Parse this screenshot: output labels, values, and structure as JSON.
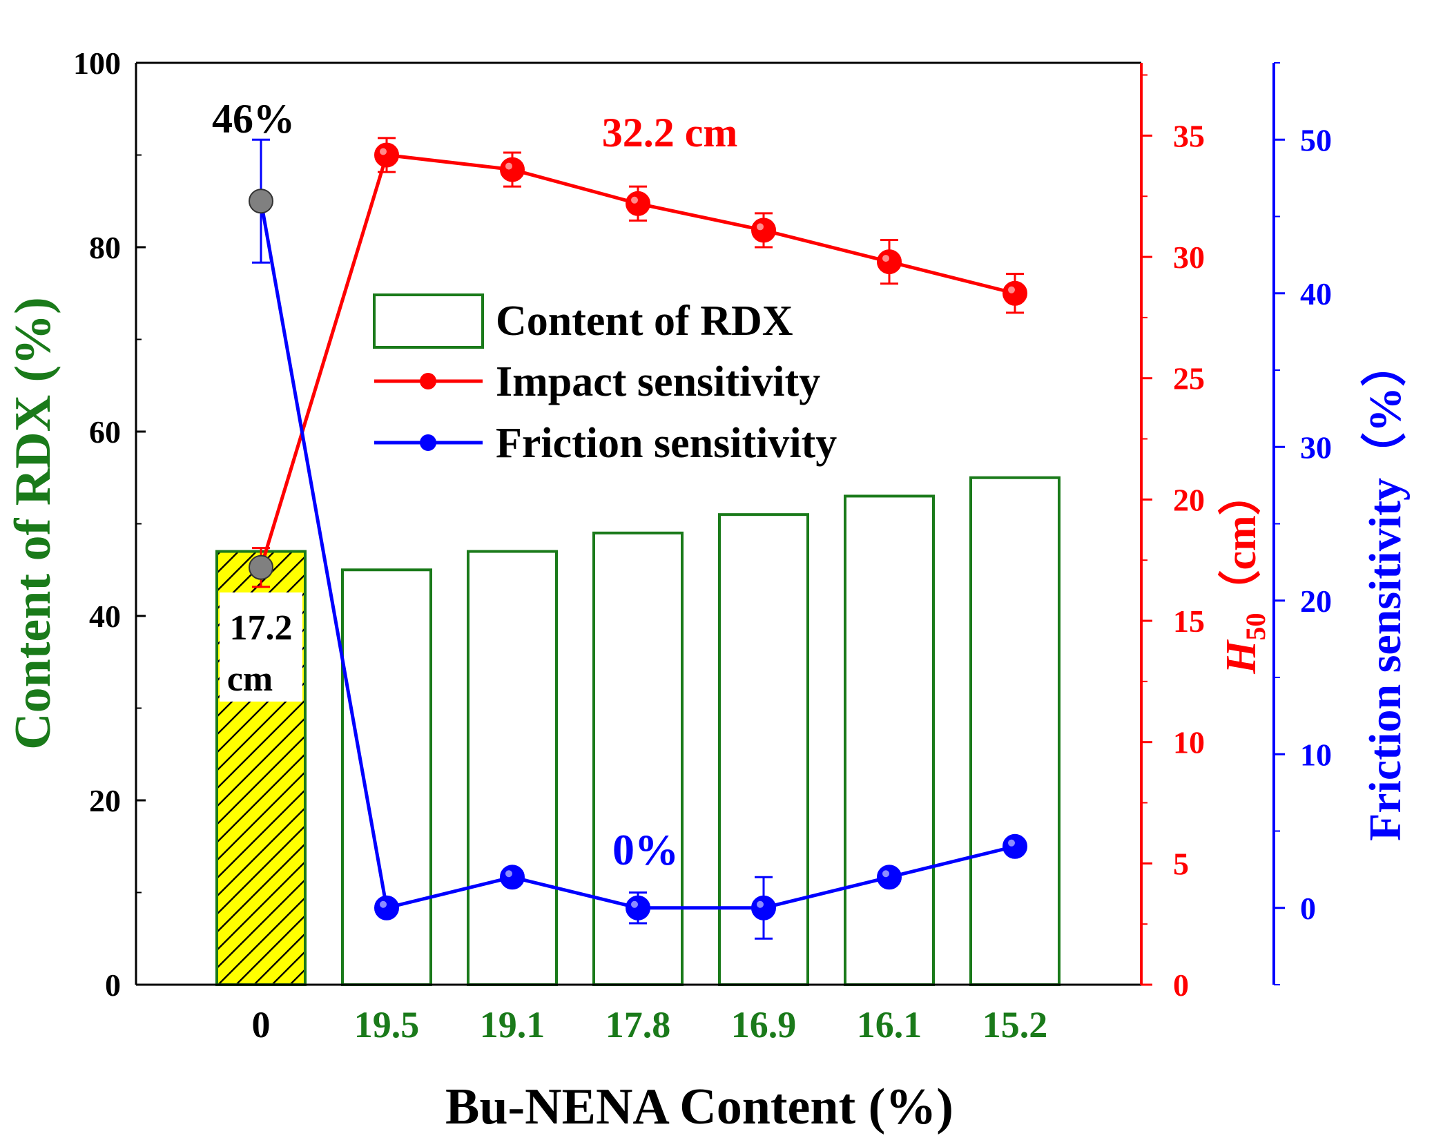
{
  "chart_data": {
    "type": "bar",
    "xlabel": "Bu-NENA Content (%)",
    "categories": [
      "0",
      "19.5",
      "19.1",
      "17.8",
      "16.9",
      "16.1",
      "15.2"
    ],
    "category_colors": [
      "#000000",
      "#1a7a1a",
      "#1a7a1a",
      "#1a7a1a",
      "#1a7a1a",
      "#1a7a1a",
      "#1a7a1a"
    ],
    "left_axis": {
      "label": "Content of RDX (%)",
      "ticks": [
        "0",
        "20",
        "40",
        "60",
        "80",
        "100"
      ],
      "range": [
        0,
        100
      ],
      "color": "#1a7a1a"
    },
    "right_axis_1": {
      "label_main": "H",
      "label_sub": "50",
      "label_unit": "（cm）",
      "ticks": [
        "0",
        "5",
        "10",
        "15",
        "20",
        "25",
        "30",
        "35"
      ],
      "range": [
        0,
        38
      ],
      "color": "#ff0000"
    },
    "right_axis_2": {
      "label": "Friction sensitivity（%）",
      "ticks": [
        "0",
        "10",
        "20",
        "30",
        "40",
        "50"
      ],
      "range": [
        -5,
        55
      ],
      "color": "#0000ff"
    },
    "series": [
      {
        "name": "Content of RDX",
        "type": "bar",
        "axis": "left",
        "values": [
          47,
          45,
          47,
          49,
          51,
          53,
          55
        ],
        "color": "#1a7a1a",
        "first_fill": "#ffff00"
      },
      {
        "name": "Impact sensitivity",
        "type": "line",
        "axis": "right_1",
        "values": [
          17.2,
          34.2,
          33.6,
          32.2,
          31.1,
          29.8,
          28.5
        ],
        "errors": [
          0.8,
          0.7,
          0.7,
          0.7,
          0.7,
          0.9,
          0.8
        ],
        "color": "#ff0000"
      },
      {
        "name": "Friction sensitivity",
        "type": "line",
        "axis": "right_2",
        "values": [
          46,
          0,
          2,
          0,
          0,
          2,
          4
        ],
        "errors": [
          4,
          0,
          0,
          1,
          2,
          0,
          0
        ],
        "color": "#0000ff"
      }
    ],
    "special_points": [
      {
        "series": 1,
        "index": 0,
        "color": "#808080"
      },
      {
        "series": 2,
        "index": 0,
        "color": "#808080"
      }
    ],
    "annotations": {
      "friction_peak": "46%",
      "impact_label": "32.2 cm",
      "first_bar_line1": "17.2",
      "first_bar_line2": "cm",
      "zero_percent": "0%"
    },
    "legend_position": "center"
  }
}
